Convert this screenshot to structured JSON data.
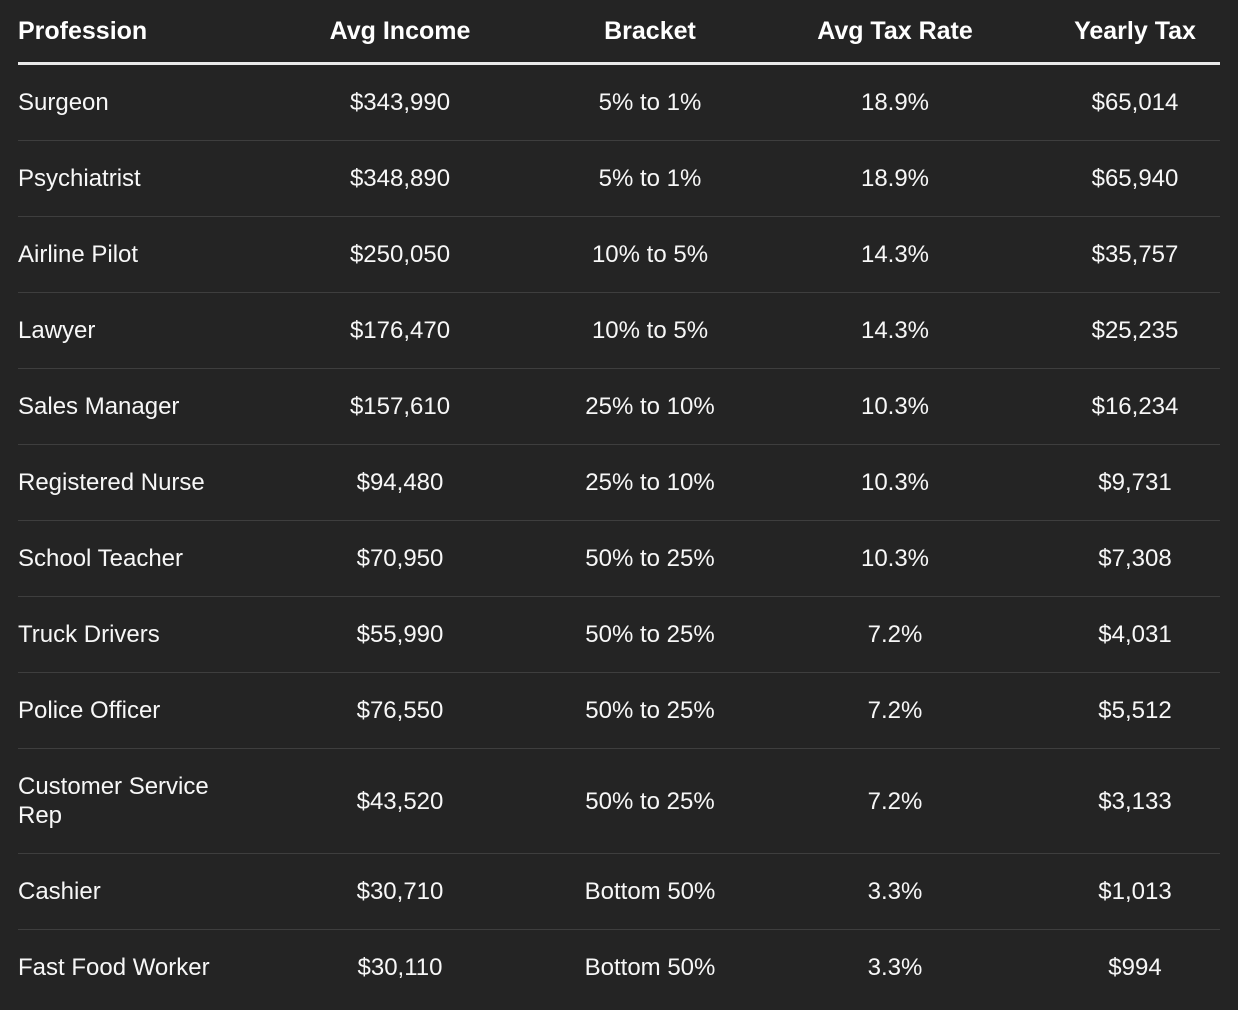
{
  "colors": {
    "background": "#242424",
    "header_text": "#ffffff",
    "body_text": "#f7f7f7",
    "header_underline": "#e9e9e9",
    "row_divider": "#3e3e3e"
  },
  "chart_data": {
    "type": "table",
    "columns": [
      "Profession",
      "Avg Income",
      "Bracket",
      "Avg Tax Rate",
      "Yearly Tax"
    ],
    "rows": [
      [
        "Surgeon",
        "$343,990",
        "5% to 1%",
        "18.9%",
        "$65,014"
      ],
      [
        "Psychiatrist",
        "$348,890",
        "5% to 1%",
        "18.9%",
        "$65,940"
      ],
      [
        "Airline Pilot",
        "$250,050",
        "10% to 5%",
        "14.3%",
        "$35,757"
      ],
      [
        "Lawyer",
        "$176,470",
        "10% to 5%",
        "14.3%",
        "$25,235"
      ],
      [
        "Sales Manager",
        "$157,610",
        "25% to 10%",
        "10.3%",
        "$16,234"
      ],
      [
        "Registered Nurse",
        "$94,480",
        "25% to 10%",
        "10.3%",
        "$9,731"
      ],
      [
        "School Teacher",
        "$70,950",
        "50% to 25%",
        "10.3%",
        "$7,308"
      ],
      [
        "Truck Drivers",
        "$55,990",
        "50% to 25%",
        "7.2%",
        "$4,031"
      ],
      [
        "Police Officer",
        "$76,550",
        "50% to 25%",
        "7.2%",
        "$5,512"
      ],
      [
        "Customer Service Rep",
        "$43,520",
        "50% to 25%",
        "7.2%",
        "$3,133"
      ],
      [
        "Cashier",
        "$30,710",
        "Bottom 50%",
        "3.3%",
        "$1,013"
      ],
      [
        "Fast Food Worker",
        "$30,110",
        "Bottom 50%",
        "3.3%",
        "$994"
      ]
    ]
  }
}
